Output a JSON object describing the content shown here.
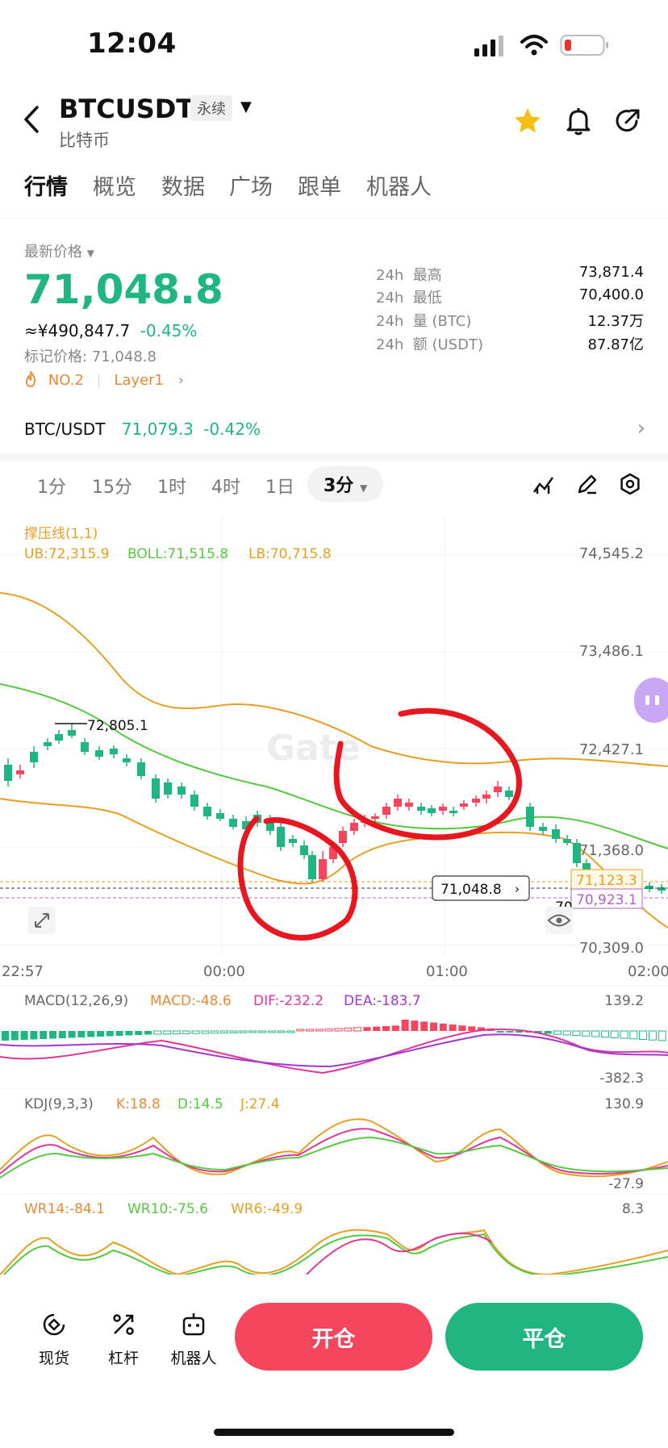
{
  "status": {
    "time": "12:04"
  },
  "header": {
    "symbol": "BTCUSDT",
    "badge": "永续",
    "subtitle": "比特币"
  },
  "tabs": [
    "行情",
    "概览",
    "数据",
    "广场",
    "跟单",
    "机器人"
  ],
  "price": {
    "label": "最新价格",
    "last": "71,048.8",
    "cny": "≈¥490,847.7",
    "change": "-0.45%",
    "mark": "标记价格: 71,048.8",
    "rank": "NO.2",
    "tag": "Layer1"
  },
  "stats": [
    {
      "prefix": "24h",
      "label": "最高",
      "value": "73,871.4"
    },
    {
      "prefix": "24h",
      "label": "最低",
      "value": "70,400.0"
    },
    {
      "prefix": "24h",
      "label": "量 (BTC)",
      "value": "12.37万"
    },
    {
      "prefix": "24h",
      "label": "额 (USDT)",
      "value": "87.87亿"
    }
  ],
  "spot": {
    "pair": "BTC/USDT",
    "price": "71,079.3",
    "change": "-0.42%"
  },
  "periods": [
    "1分",
    "15分",
    "1时",
    "4时",
    "1日",
    "3分"
  ],
  "indicators": {
    "sr_label": "撑压线(1,1)",
    "ub": "UB:72,315.9",
    "boll": "BOLL:71,515.8",
    "lb": "LB:70,715.8",
    "macd_label": "MACD(12,26,9)",
    "macd": "MACD:-48.6",
    "dif": "DIF:-232.2",
    "dea": "DEA:-183.7",
    "kdj_label": "KDJ(9,3,3)",
    "k": "K:18.8",
    "d": "D:14.5",
    "j": "J:27.4",
    "wr14": "WR14:-84.1",
    "wr10": "WR10:-75.6",
    "wr6": "WR6:-49.9"
  },
  "axis": {
    "price_ticks": [
      "74,545.2",
      "73,486.1",
      "72,427.1",
      "71,368.0",
      "70,309.0"
    ],
    "time_ticks": [
      "22:57",
      "00:00",
      "01:00",
      "02:00"
    ],
    "macd_ticks": [
      "139.2",
      "-382.3"
    ],
    "kdj_ticks": [
      "130.9",
      "-27.9"
    ],
    "wr_ticks": [
      "8.3"
    ],
    "high_marker": "72,805.1",
    "current_marker": "71,048.8",
    "yellow_marker": "71,123.3",
    "purple_marker": "70,923.1",
    "partial_marker": "70"
  },
  "bottom": {
    "spot": "现货",
    "lever": "杠杆",
    "bot": "机器人",
    "open": "开仓",
    "close": "平仓"
  },
  "colors": {
    "up": "#1fb682",
    "down": "#f6465d",
    "boll_mid": "#56c940",
    "boll_band": "#e5a023",
    "annotation": "#e8161e"
  }
}
